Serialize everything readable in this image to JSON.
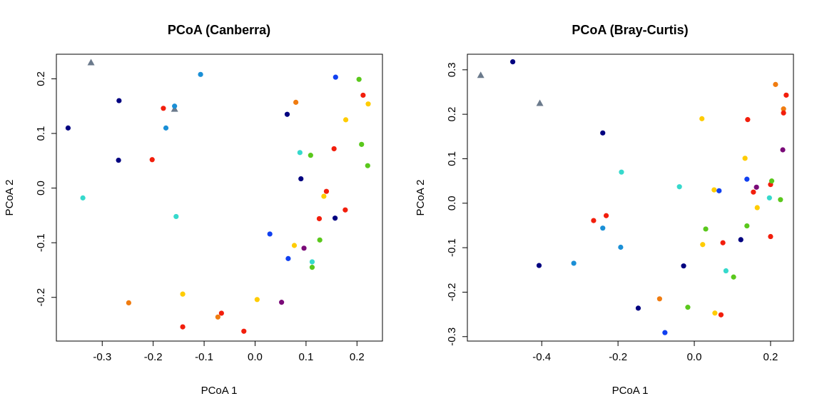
{
  "chart_data": [
    {
      "type": "scatter",
      "title": "PCoA (Canberra)",
      "xlabel": "PCoA 1",
      "ylabel": "PCoA 2",
      "xlim": [
        -0.39,
        0.25
      ],
      "ylim": [
        -0.28,
        0.245
      ],
      "xticks": [
        -0.3,
        -0.2,
        -0.1,
        0.0,
        0.1,
        0.2
      ],
      "xtick_labels": [
        "-0.3",
        "-0.2",
        "-0.1",
        "0.0",
        "0.1",
        "0.2"
      ],
      "yticks": [
        -0.2,
        -0.1,
        0.0,
        0.1,
        0.2
      ],
      "ytick_labels": [
        "-0.2",
        "-0.1",
        "0.0",
        "0.1",
        "0.2"
      ],
      "grid": false,
      "points": [
        {
          "x": -0.322,
          "y": 0.23,
          "color": "#6b7a8c",
          "shape": "triangle"
        },
        {
          "x": -0.158,
          "y": 0.145,
          "color": "#6b7a8c",
          "shape": "triangle"
        },
        {
          "x": -0.367,
          "y": 0.11,
          "color": "#000080",
          "shape": "circle"
        },
        {
          "x": -0.267,
          "y": 0.16,
          "color": "#000080",
          "shape": "circle"
        },
        {
          "x": -0.268,
          "y": 0.051,
          "color": "#000080",
          "shape": "circle"
        },
        {
          "x": -0.107,
          "y": 0.208,
          "color": "#1a8fd6",
          "shape": "circle"
        },
        {
          "x": -0.158,
          "y": 0.15,
          "color": "#1a8fd6",
          "shape": "circle"
        },
        {
          "x": -0.175,
          "y": 0.11,
          "color": "#1a8fd6",
          "shape": "circle"
        },
        {
          "x": -0.18,
          "y": 0.146,
          "color": "#f21e0c",
          "shape": "circle"
        },
        {
          "x": -0.202,
          "y": 0.052,
          "color": "#f21e0c",
          "shape": "circle"
        },
        {
          "x": -0.338,
          "y": -0.018,
          "color": "#36d9cc",
          "shape": "circle"
        },
        {
          "x": -0.155,
          "y": -0.052,
          "color": "#36d9cc",
          "shape": "circle"
        },
        {
          "x": -0.248,
          "y": -0.21,
          "color": "#f07c10",
          "shape": "circle"
        },
        {
          "x": -0.142,
          "y": -0.194,
          "color": "#ffcc00",
          "shape": "circle"
        },
        {
          "x": -0.142,
          "y": -0.254,
          "color": "#f21e0c",
          "shape": "circle"
        },
        {
          "x": -0.073,
          "y": -0.236,
          "color": "#f07c10",
          "shape": "circle"
        },
        {
          "x": -0.066,
          "y": -0.229,
          "color": "#f21e0c",
          "shape": "circle"
        },
        {
          "x": -0.022,
          "y": -0.262,
          "color": "#f21e0c",
          "shape": "circle"
        },
        {
          "x": 0.004,
          "y": -0.204,
          "color": "#ffcc00",
          "shape": "circle"
        },
        {
          "x": 0.052,
          "y": -0.209,
          "color": "#7a0a78",
          "shape": "circle"
        },
        {
          "x": 0.158,
          "y": 0.203,
          "color": "#1040f0",
          "shape": "circle"
        },
        {
          "x": 0.204,
          "y": 0.199,
          "color": "#5ac81c",
          "shape": "circle"
        },
        {
          "x": 0.212,
          "y": 0.17,
          "color": "#f21e0c",
          "shape": "circle"
        },
        {
          "x": 0.222,
          "y": 0.154,
          "color": "#ffcc00",
          "shape": "circle"
        },
        {
          "x": 0.08,
          "y": 0.157,
          "color": "#f07c10",
          "shape": "circle"
        },
        {
          "x": 0.063,
          "y": 0.135,
          "color": "#000080",
          "shape": "circle"
        },
        {
          "x": 0.178,
          "y": 0.125,
          "color": "#ffcc00",
          "shape": "circle"
        },
        {
          "x": 0.209,
          "y": 0.08,
          "color": "#5ac81c",
          "shape": "circle"
        },
        {
          "x": 0.221,
          "y": 0.041,
          "color": "#5ac81c",
          "shape": "circle"
        },
        {
          "x": 0.155,
          "y": 0.072,
          "color": "#f21e0c",
          "shape": "circle"
        },
        {
          "x": 0.088,
          "y": 0.065,
          "color": "#36d9cc",
          "shape": "circle"
        },
        {
          "x": 0.109,
          "y": 0.06,
          "color": "#5ac81c",
          "shape": "circle"
        },
        {
          "x": 0.09,
          "y": 0.017,
          "color": "#000080",
          "shape": "circle"
        },
        {
          "x": 0.14,
          "y": -0.006,
          "color": "#f21e0c",
          "shape": "circle"
        },
        {
          "x": 0.135,
          "y": -0.015,
          "color": "#ffcc00",
          "shape": "circle"
        },
        {
          "x": 0.177,
          "y": -0.04,
          "color": "#f21e0c",
          "shape": "circle"
        },
        {
          "x": 0.126,
          "y": -0.056,
          "color": "#f21e0c",
          "shape": "circle"
        },
        {
          "x": 0.157,
          "y": -0.055,
          "color": "#000080",
          "shape": "circle"
        },
        {
          "x": 0.029,
          "y": -0.084,
          "color": "#1040f0",
          "shape": "circle"
        },
        {
          "x": 0.127,
          "y": -0.095,
          "color": "#5ac81c",
          "shape": "circle"
        },
        {
          "x": 0.077,
          "y": -0.105,
          "color": "#ffcc00",
          "shape": "circle"
        },
        {
          "x": 0.096,
          "y": -0.11,
          "color": "#7a0a78",
          "shape": "circle"
        },
        {
          "x": 0.065,
          "y": -0.129,
          "color": "#1040f0",
          "shape": "circle"
        },
        {
          "x": 0.112,
          "y": -0.135,
          "color": "#36d9cc",
          "shape": "circle"
        },
        {
          "x": 0.112,
          "y": -0.145,
          "color": "#5ac81c",
          "shape": "circle"
        }
      ]
    },
    {
      "type": "scatter",
      "title": "PCoA (Bray-Curtis)",
      "xlabel": "PCoA 1",
      "ylabel": "PCoA 2",
      "xlim": [
        -0.595,
        0.26
      ],
      "ylim": [
        -0.31,
        0.335
      ],
      "xticks": [
        -0.4,
        -0.2,
        0.0,
        0.2
      ],
      "xtick_labels": [
        "-0.4",
        "-0.2",
        "0.0",
        "0.2"
      ],
      "yticks": [
        -0.3,
        -0.2,
        -0.1,
        0.0,
        0.1,
        0.2,
        0.3
      ],
      "ytick_labels": [
        "-0.3",
        "-0.2",
        "-0.1",
        "0.0",
        "0.1",
        "0.2",
        "0.3"
      ],
      "grid": false,
      "points": [
        {
          "x": -0.56,
          "y": 0.288,
          "color": "#6b7a8c",
          "shape": "triangle"
        },
        {
          "x": -0.405,
          "y": 0.225,
          "color": "#6b7a8c",
          "shape": "triangle"
        },
        {
          "x": -0.476,
          "y": 0.318,
          "color": "#000080",
          "shape": "circle"
        },
        {
          "x": -0.24,
          "y": 0.158,
          "color": "#000080",
          "shape": "circle"
        },
        {
          "x": -0.407,
          "y": -0.14,
          "color": "#000080",
          "shape": "circle"
        },
        {
          "x": -0.316,
          "y": -0.135,
          "color": "#1a8fd6",
          "shape": "circle"
        },
        {
          "x": -0.24,
          "y": -0.056,
          "color": "#1a8fd6",
          "shape": "circle"
        },
        {
          "x": -0.193,
          "y": -0.099,
          "color": "#1a8fd6",
          "shape": "circle"
        },
        {
          "x": -0.191,
          "y": 0.07,
          "color": "#36d9cc",
          "shape": "circle"
        },
        {
          "x": -0.264,
          "y": -0.039,
          "color": "#f21e0c",
          "shape": "circle"
        },
        {
          "x": -0.231,
          "y": -0.028,
          "color": "#f21e0c",
          "shape": "circle"
        },
        {
          "x": -0.039,
          "y": 0.037,
          "color": "#36d9cc",
          "shape": "circle"
        },
        {
          "x": -0.147,
          "y": -0.236,
          "color": "#000080",
          "shape": "circle"
        },
        {
          "x": -0.091,
          "y": -0.215,
          "color": "#f07c10",
          "shape": "circle"
        },
        {
          "x": -0.077,
          "y": -0.291,
          "color": "#1040f0",
          "shape": "circle"
        },
        {
          "x": -0.017,
          "y": -0.234,
          "color": "#5ac81c",
          "shape": "circle"
        },
        {
          "x": -0.028,
          "y": -0.141,
          "color": "#000080",
          "shape": "circle"
        },
        {
          "x": 0.02,
          "y": 0.19,
          "color": "#ffcc00",
          "shape": "circle"
        },
        {
          "x": 0.03,
          "y": -0.058,
          "color": "#5ac81c",
          "shape": "circle"
        },
        {
          "x": 0.022,
          "y": -0.093,
          "color": "#ffcc00",
          "shape": "circle"
        },
        {
          "x": 0.052,
          "y": 0.03,
          "color": "#ffcc00",
          "shape": "circle"
        },
        {
          "x": 0.065,
          "y": 0.028,
          "color": "#1040f0",
          "shape": "circle"
        },
        {
          "x": 0.054,
          "y": -0.247,
          "color": "#ffcc00",
          "shape": "circle"
        },
        {
          "x": 0.07,
          "y": -0.251,
          "color": "#f21e0c",
          "shape": "circle"
        },
        {
          "x": 0.075,
          "y": -0.089,
          "color": "#f21e0c",
          "shape": "circle"
        },
        {
          "x": 0.083,
          "y": -0.152,
          "color": "#36d9cc",
          "shape": "circle"
        },
        {
          "x": 0.103,
          "y": -0.166,
          "color": "#5ac81c",
          "shape": "circle"
        },
        {
          "x": 0.122,
          "y": -0.082,
          "color": "#000080",
          "shape": "circle"
        },
        {
          "x": 0.133,
          "y": 0.101,
          "color": "#ffcc00",
          "shape": "circle"
        },
        {
          "x": 0.14,
          "y": 0.188,
          "color": "#f21e0c",
          "shape": "circle"
        },
        {
          "x": 0.138,
          "y": 0.054,
          "color": "#1040f0",
          "shape": "circle"
        },
        {
          "x": 0.138,
          "y": -0.051,
          "color": "#5ac81c",
          "shape": "circle"
        },
        {
          "x": 0.155,
          "y": 0.025,
          "color": "#f21e0c",
          "shape": "circle"
        },
        {
          "x": 0.163,
          "y": 0.036,
          "color": "#7a0a78",
          "shape": "circle"
        },
        {
          "x": 0.165,
          "y": -0.01,
          "color": "#ffcc00",
          "shape": "circle"
        },
        {
          "x": 0.197,
          "y": 0.012,
          "color": "#36d9cc",
          "shape": "circle"
        },
        {
          "x": 0.2,
          "y": 0.042,
          "color": "#f21e0c",
          "shape": "circle"
        },
        {
          "x": 0.203,
          "y": 0.05,
          "color": "#5ac81c",
          "shape": "circle"
        },
        {
          "x": 0.2,
          "y": -0.075,
          "color": "#f21e0c",
          "shape": "circle"
        },
        {
          "x": 0.213,
          "y": 0.267,
          "color": "#f07c10",
          "shape": "circle"
        },
        {
          "x": 0.234,
          "y": 0.212,
          "color": "#f07c10",
          "shape": "circle"
        },
        {
          "x": 0.234,
          "y": 0.203,
          "color": "#f21e0c",
          "shape": "circle"
        },
        {
          "x": 0.241,
          "y": 0.243,
          "color": "#f21e0c",
          "shape": "circle"
        },
        {
          "x": 0.232,
          "y": 0.12,
          "color": "#7a0a78",
          "shape": "circle"
        },
        {
          "x": 0.226,
          "y": 0.008,
          "color": "#5ac81c",
          "shape": "circle"
        }
      ]
    }
  ]
}
